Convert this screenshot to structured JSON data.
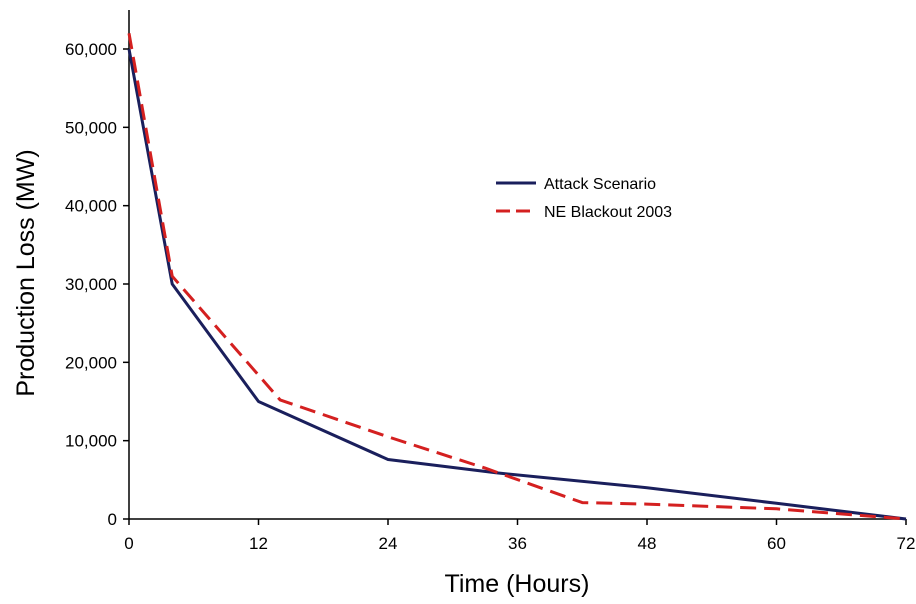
{
  "chart_data": {
    "type": "line",
    "title": "",
    "xlabel": "Time (Hours)",
    "ylabel": "Production Loss (MW)",
    "xlim": [
      0,
      72
    ],
    "ylim": [
      0,
      65000
    ],
    "xticks": [
      0,
      12,
      24,
      36,
      48,
      60,
      72
    ],
    "xtick_labels": [
      "0",
      "12",
      "24",
      "36",
      "48",
      "60",
      "72"
    ],
    "yticks": [
      0,
      10000,
      20000,
      30000,
      40000,
      50000,
      60000
    ],
    "ytick_labels": [
      "0",
      "10,000",
      "20,000",
      "30,000",
      "40,000",
      "50,000",
      "60,000"
    ],
    "grid": false,
    "legend": "center-right",
    "series": [
      {
        "name": "Attack Scenario",
        "color": "#1a1f5c",
        "style": "solid",
        "x": [
          0,
          4,
          12,
          24,
          34,
          48,
          60,
          72
        ],
        "y": [
          60000,
          30000,
          15000,
          7600,
          5900,
          4000,
          2000,
          0
        ]
      },
      {
        "name": "NE Blackout 2003",
        "color": "#d42020",
        "style": "dashed",
        "x": [
          0,
          4,
          14,
          24,
          33,
          42,
          48,
          60,
          72
        ],
        "y": [
          62000,
          31000,
          15200,
          10500,
          6500,
          2100,
          1900,
          1300,
          0
        ]
      }
    ]
  }
}
